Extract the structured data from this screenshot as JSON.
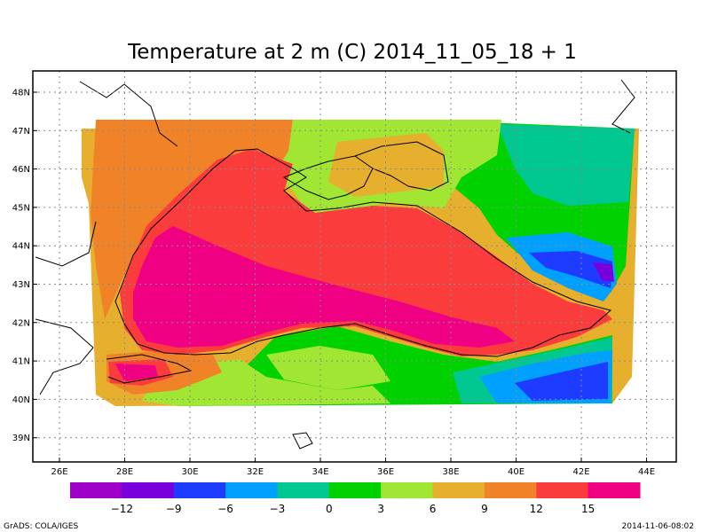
{
  "title": "Temperature at 2 m (C) 2014_11_05_18 + 1",
  "footer": {
    "left": "GrADS: COLA/IGES",
    "right": "2014-11-06-08:02"
  },
  "axes": {
    "x_ticks": [
      "26E",
      "28E",
      "30E",
      "32E",
      "34E",
      "36E",
      "38E",
      "40E",
      "42E",
      "44E"
    ],
    "y_ticks": [
      "48N",
      "47N",
      "46N",
      "45N",
      "44N",
      "43N",
      "42N",
      "41N",
      "40N",
      "39N"
    ],
    "grid": "dotted"
  },
  "colorbar": {
    "colors": [
      "#9f00c8",
      "#7800dc",
      "#1e3cff",
      "#00a0ff",
      "#00c890",
      "#00d200",
      "#a0e632",
      "#e6af2d",
      "#f08228",
      "#fa3c3c",
      "#f00082"
    ],
    "labels": [
      "-12",
      "-9",
      "-6",
      "-3",
      "0",
      "3",
      "6",
      "9",
      "12",
      "15"
    ]
  },
  "colors": {
    "t_lt_-12": "#9f00c8",
    "t_-12_-9": "#7800dc",
    "t_-9_-6": "#1e3cff",
    "t_-6_-3": "#00a0ff",
    "t_-3_0": "#00c890",
    "t_0_3": "#00d200",
    "t_3_6": "#a0e632",
    "t_6_9": "#e6af2d",
    "t_9_12": "#f08228",
    "t_12_15": "#fa3c3c",
    "t_gt_15": "#f00082"
  }
}
